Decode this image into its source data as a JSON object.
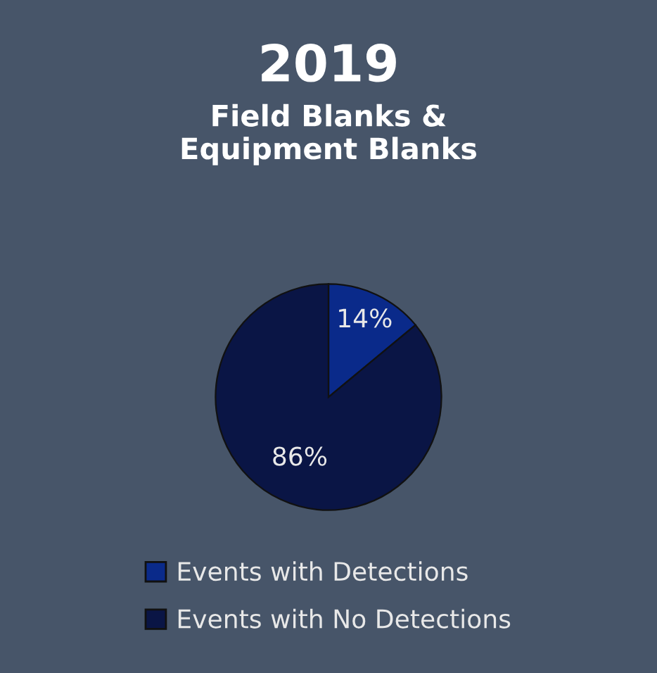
{
  "chart_data": {
    "type": "pie",
    "title": "2019",
    "subtitle": "Field Blanks &\nEquipment Blanks",
    "categories": [
      "Events with Detections",
      "Events with No Detections"
    ],
    "values": [
      14,
      86
    ],
    "colors": [
      "#0a2a8a",
      "#0a1545"
    ],
    "value_labels": [
      "14%",
      "86%"
    ],
    "legend": "bottom"
  }
}
